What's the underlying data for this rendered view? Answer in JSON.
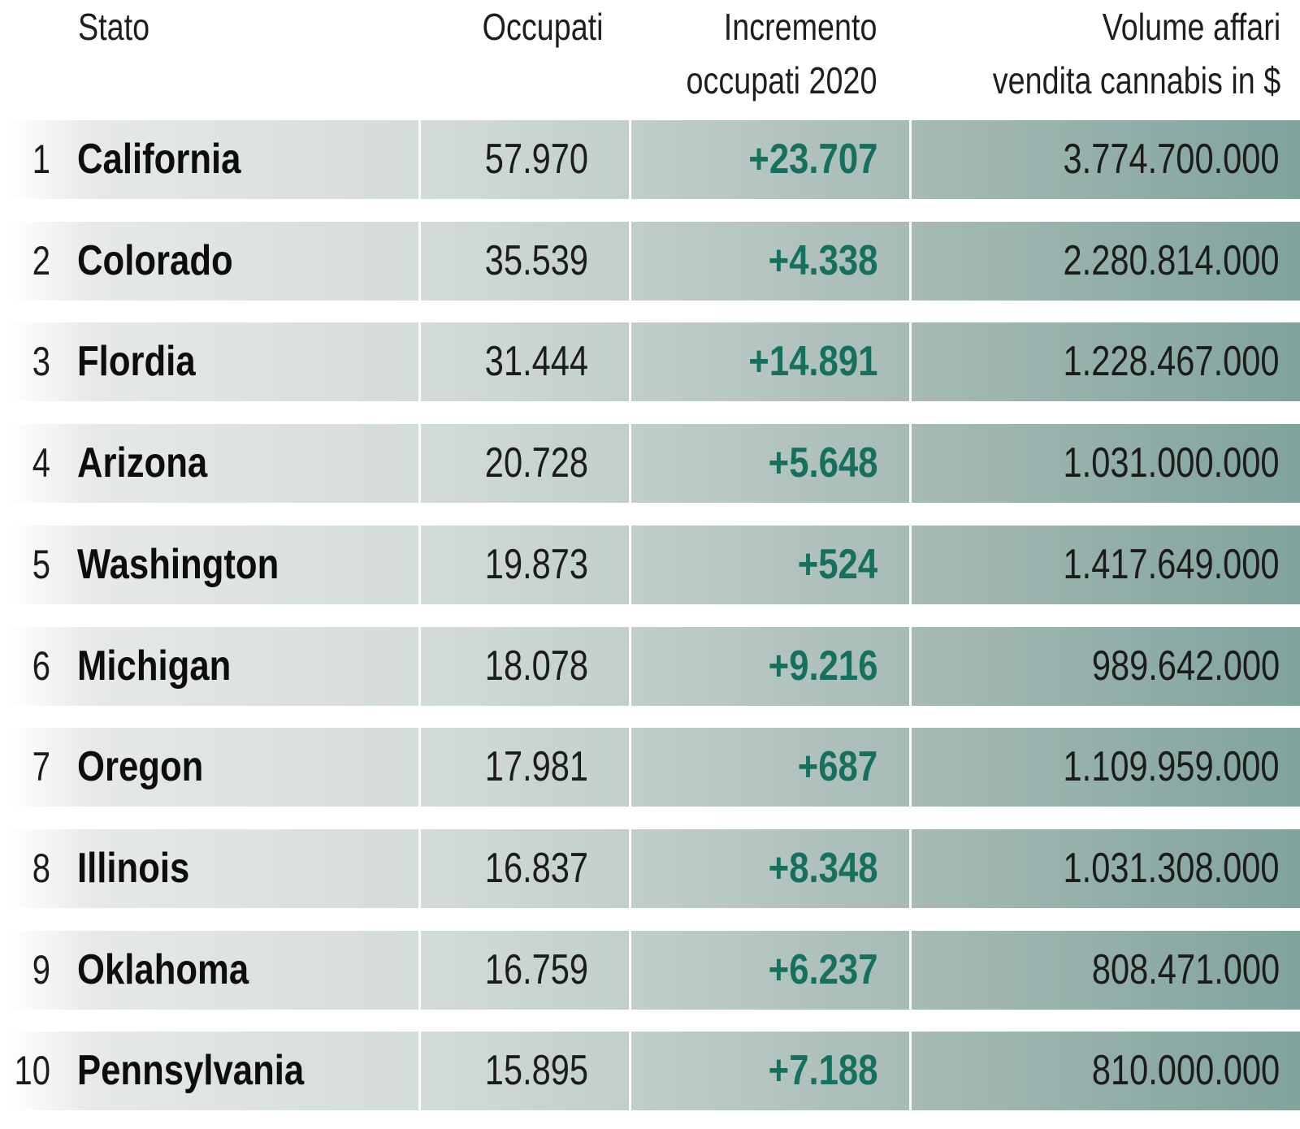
{
  "colors": {
    "increment_green": "#16705e",
    "gradient_start": "#e6e9e8",
    "gradient_end": "#7fa39c",
    "text": "#1c1c1c"
  },
  "header": {
    "stato": "Stato",
    "occupati": "Occupati",
    "incremento_line1": "Incremento",
    "incremento_line2": "occupati 2020",
    "volume_line1": "Volume affari",
    "volume_line2": "vendita cannabis in $"
  },
  "chart_data": {
    "type": "table",
    "columns": [
      "",
      "Stato",
      "Occupati",
      "Incremento occupati 2020",
      "Volume affari vendita cannabis in $"
    ],
    "rows": [
      {
        "rank": "1",
        "state": "California",
        "occupati": "57.970",
        "incremento": "+23.707",
        "volume": "3.774.700.000"
      },
      {
        "rank": "2",
        "state": "Colorado",
        "occupati": "35.539",
        "incremento": "+4.338",
        "volume": "2.280.814.000"
      },
      {
        "rank": "3",
        "state": "Flordia",
        "occupati": "31.444",
        "incremento": "+14.891",
        "volume": "1.228.467.000"
      },
      {
        "rank": "4",
        "state": "Arizona",
        "occupati": "20.728",
        "incremento": "+5.648",
        "volume": "1.031.000.000"
      },
      {
        "rank": "5",
        "state": "Washington",
        "occupati": "19.873",
        "incremento": "+524",
        "volume": "1.417.649.000"
      },
      {
        "rank": "6",
        "state": "Michigan",
        "occupati": "18.078",
        "incremento": "+9.216",
        "volume": "989.642.000"
      },
      {
        "rank": "7",
        "state": "Oregon",
        "occupati": "17.981",
        "incremento": "+687",
        "volume": "1.109.959.000"
      },
      {
        "rank": "8",
        "state": "Illinois",
        "occupati": "16.837",
        "incremento": "+8.348",
        "volume": "1.031.308.000"
      },
      {
        "rank": "9",
        "state": "Oklahoma",
        "occupati": "16.759",
        "incremento": "+6.237",
        "volume": "808.471.000"
      },
      {
        "rank": "10",
        "state": "Pennsylvania",
        "occupati": "15.895",
        "incremento": "+7.188",
        "volume": "810.000.000"
      }
    ]
  }
}
